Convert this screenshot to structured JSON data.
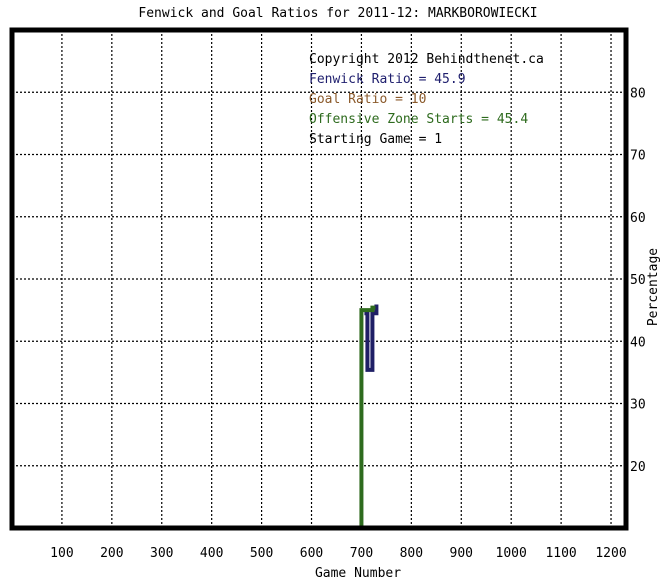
{
  "chart_data": {
    "type": "line",
    "title": "Fenwick and Goal Ratios for 2011-12: MARKBOROWIECKI",
    "xlabel": "Game Number",
    "ylabel": "Percentage",
    "xlim": [
      0,
      1230
    ],
    "ylim": [
      10,
      90
    ],
    "xticks": [
      100,
      200,
      300,
      400,
      500,
      600,
      700,
      800,
      900,
      1000,
      1100,
      1200
    ],
    "yticks": [
      20,
      30,
      40,
      50,
      60,
      70,
      80
    ],
    "grid": true,
    "legend_position": "top-right",
    "legend": [
      {
        "text": "Copyright 2012 Behindthenet.ca",
        "color": "#000000"
      },
      {
        "text": "Fenwick Ratio = 45.9",
        "color": "#1f1f6e"
      },
      {
        "text": "Goal Ratio = 10",
        "color": "#8b5a2b"
      },
      {
        "text": "Offensive Zone Starts = 45.4",
        "color": "#2e6b1e"
      },
      {
        "text": "Starting Game = 1",
        "color": "#000000"
      }
    ],
    "series": [
      {
        "color": "#1f1f66",
        "points": [
          [
            706,
            44.5
          ],
          [
            712,
            44.5
          ],
          [
            712,
            35.4
          ],
          [
            722,
            35.4
          ],
          [
            722,
            44.5
          ],
          [
            730,
            44.5
          ],
          [
            730,
            45.9
          ]
        ]
      },
      {
        "color": "#2e6b1e",
        "points": [
          [
            700,
            10
          ],
          [
            700,
            45.0
          ],
          [
            722,
            45.0
          ],
          [
            722,
            45.4
          ],
          [
            728,
            45.4
          ]
        ]
      }
    ]
  }
}
